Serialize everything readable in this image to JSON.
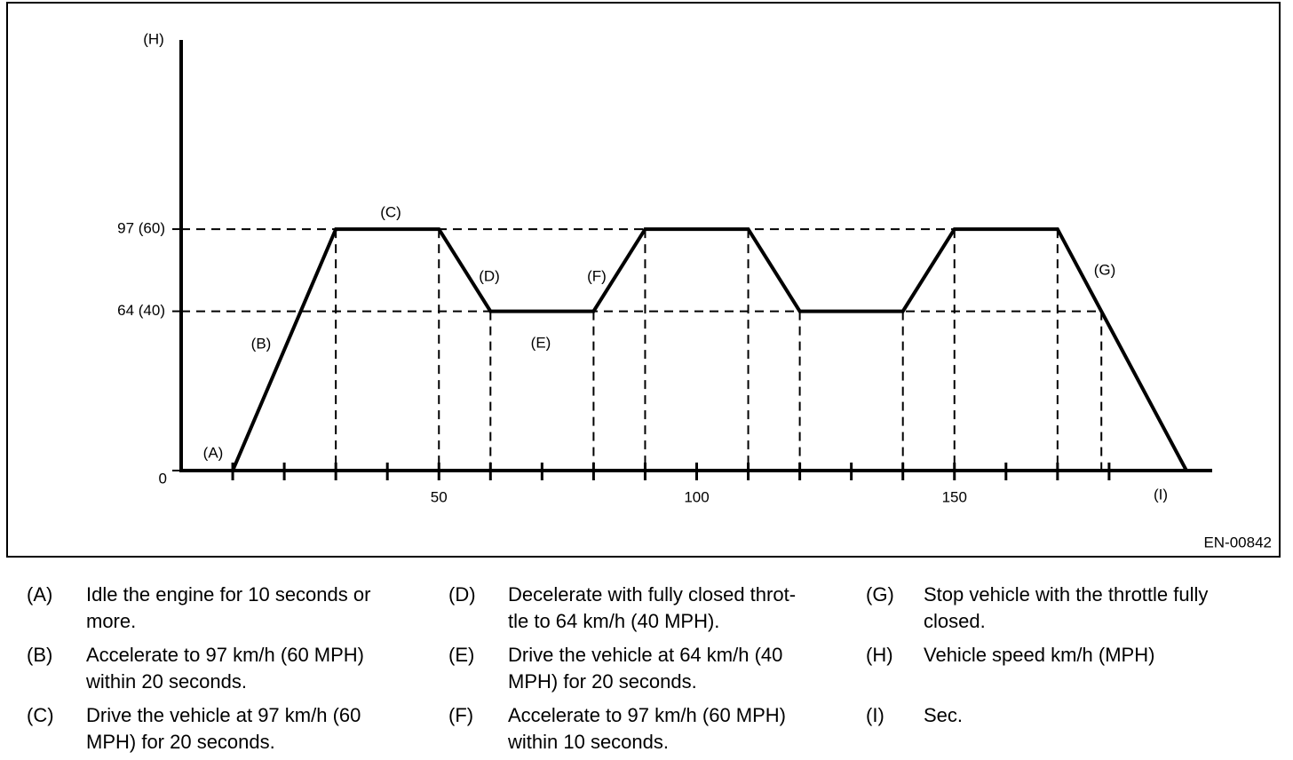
{
  "chart_data": {
    "type": "line",
    "x": [
      10,
      30,
      50,
      60,
      80,
      90,
      110,
      120,
      140,
      150,
      170,
      195
    ],
    "series": [
      {
        "color": "#000000",
        "values": [
          0,
          97,
          97,
          64,
          64,
          97,
          97,
          64,
          64,
          97,
          97,
          0
        ]
      }
    ],
    "xlim": [
      0,
      200
    ],
    "ylim": [
      0,
      173
    ],
    "xticks": [
      50,
      100,
      150
    ],
    "xminorticks": [
      10,
      20,
      30,
      40,
      50,
      60,
      70,
      80,
      90,
      100,
      110,
      120,
      130,
      140,
      150,
      160,
      170,
      180
    ],
    "yticks": [
      0,
      {
        "value": 64,
        "label": "64 (40)"
      },
      {
        "value": 97,
        "label": "97 (60)"
      }
    ],
    "guides": true
  },
  "figure_id": "EN-00842",
  "notes": [
    {
      "key": "(A)",
      "lines": [
        "Idle the engine for 10 seconds or",
        "more."
      ]
    },
    {
      "key": "(B)",
      "lines": [
        "Accelerate to 97 km/h (60 MPH)",
        "within 20 seconds."
      ]
    },
    {
      "key": "(C)",
      "lines": [
        "Drive the vehicle at 97 km/h (60",
        "MPH) for 20 seconds."
      ]
    },
    {
      "key": "(D)",
      "lines": [
        "Decelerate with fully closed throt-",
        "tle to 64 km/h (40 MPH)."
      ]
    },
    {
      "key": "(E)",
      "lines": [
        "Drive the vehicle at 64 km/h (40",
        "MPH) for 20 seconds."
      ]
    },
    {
      "key": "(F)",
      "lines": [
        "Accelerate to 97 km/h (60 MPH)",
        "within 10 seconds."
      ]
    },
    {
      "key": "(G)",
      "lines": [
        "Stop vehicle with the throttle fully",
        "closed."
      ]
    },
    {
      "key": "(H)",
      "lines": [
        "Vehicle speed km/h (MPH)"
      ]
    },
    {
      "key": "(I)",
      "lines": [
        "Sec."
      ]
    }
  ]
}
